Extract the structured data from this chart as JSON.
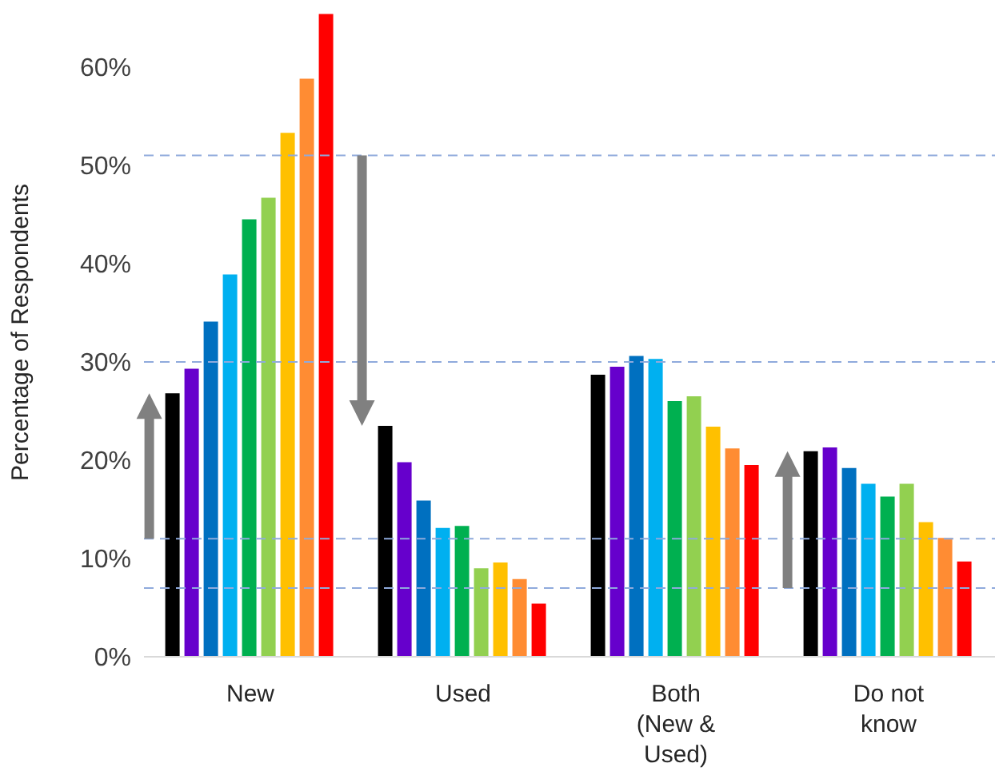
{
  "chart_data": {
    "type": "bar",
    "ylabel": "Percentage of Respondents",
    "categories": [
      "New",
      "Used",
      "Both (New & Used)",
      "Do not know"
    ],
    "series": [
      {
        "color": "#000000",
        "values": [
          26.8,
          23.5,
          28.7,
          20.9
        ]
      },
      {
        "color": "#6600cc",
        "values": [
          29.3,
          19.8,
          29.5,
          21.3
        ]
      },
      {
        "color": "#0070c0",
        "values": [
          34.1,
          15.9,
          30.6,
          19.2
        ]
      },
      {
        "color": "#00b0f0",
        "values": [
          38.9,
          13.1,
          30.3,
          17.6
        ]
      },
      {
        "color": "#00b050",
        "values": [
          44.5,
          13.3,
          26.0,
          16.3
        ]
      },
      {
        "color": "#92d050",
        "values": [
          46.7,
          9.0,
          26.5,
          17.6
        ]
      },
      {
        "color": "#ffc000",
        "values": [
          53.3,
          9.6,
          23.4,
          13.7
        ]
      },
      {
        "color": "#ff8c33",
        "values": [
          58.8,
          7.9,
          21.2,
          12.1
        ]
      },
      {
        "color": "#ff0000",
        "values": [
          65.4,
          5.4,
          19.5,
          9.7
        ]
      }
    ],
    "ylim": [
      0,
      66
    ],
    "yticks": [
      {
        "value": 0,
        "label": "0%"
      },
      {
        "value": 10,
        "label": "10%"
      },
      {
        "value": 20,
        "label": "20%"
      },
      {
        "value": 30,
        "label": "30%"
      },
      {
        "value": 40,
        "label": "40%"
      },
      {
        "value": 50,
        "label": "50%"
      },
      {
        "value": 60,
        "label": "60%"
      }
    ],
    "ref_lines": [
      {
        "axis": "y",
        "value": 51,
        "color": "#8faadc",
        "line_style": "dashed"
      },
      {
        "axis": "y",
        "value": 30,
        "color": "#8faadc",
        "line_style": "dashed"
      },
      {
        "axis": "y",
        "value": 12,
        "color": "#8faadc",
        "line_style": "dashed"
      },
      {
        "axis": "y",
        "value": 7,
        "color": "#8faadc",
        "line_style": "dashed"
      }
    ],
    "grid": false,
    "legend": false
  }
}
